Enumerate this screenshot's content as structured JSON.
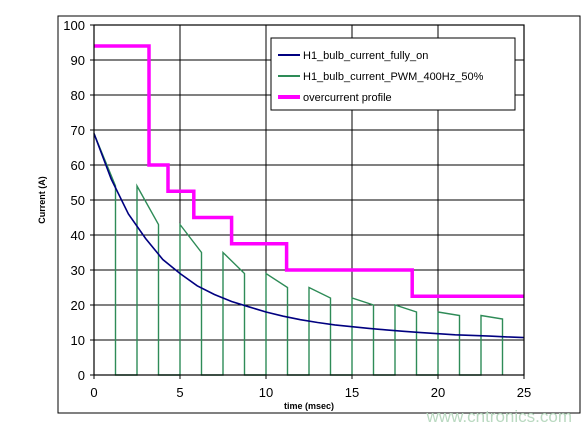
{
  "chart_data": {
    "type": "line",
    "title": "",
    "xlabel": "time (msec)",
    "ylabel": "Current (A)",
    "xlim": [
      0,
      25
    ],
    "ylim": [
      0,
      100
    ],
    "x_ticks": [
      0,
      5,
      10,
      15,
      20,
      25
    ],
    "y_ticks": [
      0,
      10,
      20,
      30,
      40,
      50,
      60,
      70,
      80,
      90,
      100
    ],
    "grid": true,
    "legend_position": "top-right",
    "series": [
      {
        "name": "H1_bulb_current_fully_on",
        "color": "#000080",
        "x": [
          0,
          1,
          2,
          3,
          4,
          5,
          6,
          7,
          8,
          9,
          10,
          11,
          12,
          13,
          14,
          15,
          16,
          17,
          18,
          19,
          20,
          21,
          22,
          23,
          24,
          25
        ],
        "y": [
          69,
          56,
          46,
          39,
          33,
          29,
          25.5,
          23,
          21,
          19.5,
          18,
          16.8,
          15.8,
          15,
          14.3,
          13.8,
          13.3,
          12.9,
          12.5,
          12.1,
          11.8,
          11.5,
          11.3,
          11.1,
          10.9,
          10.7
        ]
      },
      {
        "name": "H1_bulb_current_PWM_400Hz_50%",
        "color": "#2e8b57",
        "x": [
          0,
          1.25,
          1.25,
          2.5,
          2.5,
          3.75,
          3.75,
          5,
          5,
          6.25,
          6.25,
          7.5,
          7.5,
          8.75,
          8.75,
          10,
          10,
          11.25,
          11.25,
          12.5,
          12.5,
          13.75,
          13.75,
          15,
          15,
          16.25,
          16.25,
          17.5,
          17.5,
          18.75,
          18.75,
          20,
          20,
          21.25,
          21.25,
          22.5,
          22.5,
          23.75,
          23.75
        ],
        "y": [
          69,
          54,
          0,
          0,
          54,
          43,
          0,
          0,
          43,
          35,
          0,
          0,
          35,
          29,
          0,
          0,
          29,
          25,
          0,
          0,
          25,
          22,
          0,
          0,
          22,
          20,
          0,
          0,
          20,
          18,
          0,
          0,
          18,
          17,
          0,
          0,
          17,
          16,
          0
        ]
      },
      {
        "name": "overcurrent profile",
        "color": "#ff00ff",
        "x": [
          0,
          3.2,
          3.2,
          4.3,
          4.3,
          5.8,
          5.8,
          8,
          8,
          11.2,
          11.2,
          18.5,
          18.5,
          25
        ],
        "y": [
          94,
          94,
          60,
          60,
          52.5,
          52.5,
          45,
          45,
          37.5,
          37.5,
          30,
          30,
          22.5,
          22.5
        ]
      }
    ]
  },
  "watermark": "www.cntronics.com"
}
